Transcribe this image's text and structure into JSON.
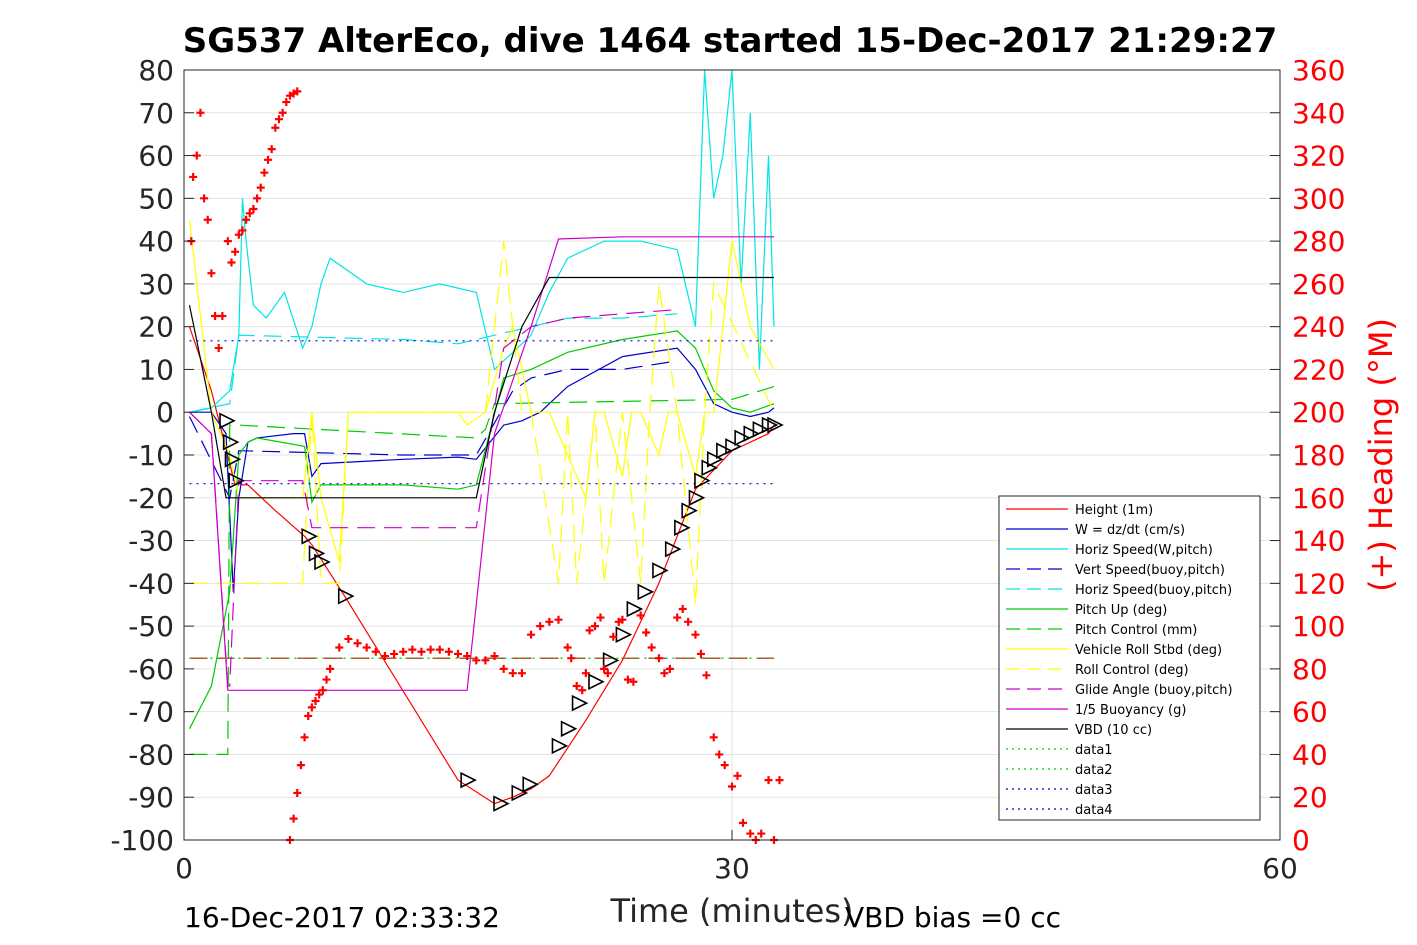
{
  "chart_data": {
    "type": "line",
    "title": "SG537 AlterEco, dive 1464 started 15-Dec-2017 21:29:27",
    "xlabel": "Time (minutes)",
    "ylabel_right": "(+) Heading (°M)",
    "xlim": [
      0,
      60
    ],
    "ylim": [
      -100,
      80
    ],
    "ylim_right": [
      0,
      360
    ],
    "x_ticks": [
      "0",
      "30",
      "60"
    ],
    "y_ticks": [
      "80",
      "70",
      "60",
      "50",
      "40",
      "30",
      "20",
      "10",
      "0",
      "-10",
      "-20",
      "-30",
      "-40",
      "-50",
      "-60",
      "-70",
      "-80",
      "-90",
      "-100"
    ],
    "y_ticks_right": [
      "360",
      "340",
      "320",
      "300",
      "280",
      "260",
      "240",
      "220",
      "200",
      "180",
      "160",
      "140",
      "120",
      "100",
      "80",
      "60",
      "40",
      "20",
      "0"
    ],
    "grid": true,
    "legend_position": "bottom-right",
    "footer_left": "16-Dec-2017 02:33:32",
    "footer_right": "VBD bias =0 cc",
    "series": [
      {
        "name": "Height (1m)",
        "color": "#ff0000",
        "style": "solid",
        "x": [
          0.3,
          1.5,
          2.5,
          2.8,
          3.0,
          3.2,
          3.5,
          5.0,
          6.6,
          7.0,
          8.8,
          15.0,
          17.0,
          18.0,
          19.0,
          20.0,
          22.0,
          24.0,
          26.0,
          28.0,
          30.0,
          32.0,
          32.3
        ],
        "y": [
          20,
          5,
          -12,
          -17,
          -16,
          -17,
          -17,
          -23,
          -29,
          -31,
          -43,
          -86,
          -91.5,
          -90,
          -88,
          -85,
          -72,
          -58,
          -40,
          -18,
          -9,
          -5,
          -3
        ]
      },
      {
        "name": "W = dz/dt (cm/s)",
        "color": "#0000cc",
        "style": "solid",
        "x": [
          0.3,
          1.5,
          2.3,
          2.7,
          3.0,
          3.5,
          4.0,
          6.0,
          6.6,
          7.0,
          7.5,
          12.0,
          15.0,
          16.0,
          17.5,
          18.5,
          19.5,
          21.0,
          24.0,
          27.0,
          28.0,
          29.0,
          30.0,
          31.0,
          32.0,
          32.3
        ],
        "y": [
          0,
          0,
          -5,
          -42,
          -20,
          -7,
          -6,
          -5,
          -5,
          -15,
          -12,
          -11,
          -10.5,
          -11,
          -3,
          -2,
          0,
          6,
          13,
          15,
          10,
          2,
          0,
          -1,
          0,
          1
        ]
      },
      {
        "name": "Horiz Speed(W,pitch)",
        "color": "#00e5e5",
        "style": "solid",
        "x": [
          0.3,
          1.5,
          2.5,
          3.0,
          3.2,
          3.4,
          3.8,
          4.5,
          5.5,
          6.5,
          7.0,
          7.5,
          8.0,
          10.0,
          12.0,
          14.0,
          16.0,
          17.0,
          18.0,
          19.0,
          20.0,
          21.0,
          23.0,
          25.0,
          27.0,
          28.0,
          28.5,
          29.0,
          29.5,
          30.0,
          30.5,
          31.0,
          31.5,
          32.0,
          32.3
        ],
        "y": [
          0,
          1,
          5,
          18,
          50,
          40,
          25,
          22,
          28,
          15,
          20,
          30,
          36,
          30,
          28,
          30,
          28,
          10,
          14,
          18,
          28,
          36,
          40,
          40,
          38,
          20,
          80,
          50,
          60,
          80,
          30,
          70,
          10,
          60,
          20
        ]
      },
      {
        "name": "Vert Speed(buoy,pitch)",
        "color": "#0000cc",
        "style": "dashed",
        "x": [
          0.3,
          2.5,
          3.0,
          12.0,
          15.0,
          16.0,
          18.0,
          19.0,
          21.0,
          24.0,
          27.0
        ],
        "y": [
          -1,
          -20,
          -9,
          -10,
          -10,
          -10,
          5,
          8,
          10,
          10,
          12
        ]
      },
      {
        "name": "Horiz Speed(buoy,pitch)",
        "color": "#00e5e5",
        "style": "dashed",
        "x": [
          0.3,
          2.5,
          3.0,
          12.0,
          15.0,
          16.0,
          18.0,
          19.0,
          21.0,
          24.0,
          27.0
        ],
        "y": [
          0,
          2,
          18,
          17,
          16,
          17,
          19,
          20,
          22,
          22,
          23
        ]
      },
      {
        "name": "Pitch Up (deg)",
        "color": "#00cc00",
        "style": "solid",
        "x": [
          0.3,
          1.5,
          2.5,
          3.0,
          3.5,
          4.0,
          6.6,
          7.0,
          7.5,
          12.0,
          15.0,
          16.0,
          17.5,
          19.0,
          21.0,
          24.0,
          27.0,
          28.0,
          29.0,
          30.0,
          31.0,
          32.3
        ],
        "y": [
          -74,
          -64,
          -42,
          -10,
          -7,
          -6,
          -8,
          -21,
          -17,
          -17,
          -18,
          -17,
          8,
          10,
          14,
          17,
          19,
          15,
          5,
          1,
          0,
          2
        ]
      },
      {
        "name": "Pitch Control (mm)",
        "color": "#00cc00",
        "style": "dashed",
        "x": [
          0.3,
          1.5,
          2.4,
          2.5,
          3.0,
          16.0,
          16.5,
          17.0,
          30.0,
          32.3
        ],
        "y": [
          -80,
          -80,
          -80,
          -3,
          -3,
          -6,
          -4,
          2,
          3,
          6
        ]
      },
      {
        "name": "Vehicle Roll Stbd (deg)",
        "color": "#ffff00",
        "style": "solid",
        "x": [
          0.3,
          1.5,
          2.5,
          3.0,
          6.5,
          7.0,
          7.5,
          8.5,
          9.0,
          15.0,
          15.5,
          16.5,
          17.5,
          18.0,
          19.0,
          20.0,
          21.0,
          22.0,
          22.5,
          23.0,
          24.0,
          24.5,
          25.0,
          26.0,
          26.5,
          27.0,
          28.0,
          28.5,
          29.0,
          30.0,
          31.0,
          32.3
        ],
        "y": [
          45,
          0,
          -10,
          -20,
          -20,
          0,
          -20,
          -35,
          0,
          0,
          -3,
          0,
          15,
          20,
          0,
          0,
          -10,
          -20,
          0,
          0,
          -15,
          0,
          0,
          -10,
          0,
          0,
          -15,
          0,
          0,
          40,
          20,
          10
        ]
      },
      {
        "name": "Roll Control (deg)",
        "color": "#ffff00",
        "style": "dashed",
        "x": [
          0.3,
          1.5,
          2.5,
          3.0,
          6.5,
          7.0,
          7.5,
          8.5,
          9.0,
          15.0,
          16.5,
          17.5,
          18.5,
          19.0,
          20.5,
          21.0,
          21.5,
          22.5,
          23.0,
          24.0,
          25.0,
          25.5,
          26.0,
          27.0,
          28.0,
          28.5,
          29.0,
          32.3
        ],
        "y": [
          -40,
          -40,
          -40,
          -40,
          -40,
          0,
          -40,
          -40,
          0,
          0,
          0,
          40,
          0,
          0,
          -40,
          0,
          -40,
          0,
          -40,
          0,
          -40,
          0,
          30,
          0,
          -45,
          0,
          30,
          0
        ]
      },
      {
        "name": "Glide Angle (buoy,pitch)",
        "color": "#cc00cc",
        "style": "dashed",
        "x": [
          0.3,
          1.5,
          2.4,
          2.5,
          3.0,
          6.5,
          7.0,
          12.0,
          16.0,
          17.5,
          19.0,
          21.0,
          24.0,
          27.0
        ],
        "y": [
          0,
          -5,
          -64,
          -64,
          -16,
          -16,
          -27,
          -27,
          -27,
          15,
          20,
          22,
          23,
          24
        ]
      },
      {
        "name": "1/5 Buoyancy (g)",
        "color": "#cc00cc",
        "style": "solid",
        "x": [
          0.3,
          1.5,
          2.4,
          2.5,
          15.5,
          17.0,
          19.0,
          20.5,
          24.0,
          32.3
        ],
        "y": [
          0,
          -5,
          -65,
          -65,
          -65,
          -5,
          20,
          40.5,
          41,
          41
        ]
      },
      {
        "name": "VBD (10 cc)",
        "color": "#000000",
        "style": "solid",
        "x": [
          0.3,
          1.5,
          2.3,
          2.5,
          3.0,
          15.5,
          16.0,
          17.0,
          18.5,
          20.0,
          32.3
        ],
        "y": [
          25,
          0,
          -20,
          -20,
          -20,
          -20,
          -20,
          0,
          20,
          31.5,
          31.5
        ]
      },
      {
        "name": "data1",
        "color": "#00cc00",
        "style": "dotted",
        "x": [
          0.3,
          32.3
        ],
        "y": [
          -57.5,
          -57.5
        ]
      },
      {
        "name": "data2",
        "color": "#00cc00",
        "style": "dotted",
        "x": [
          0.3,
          32.3
        ],
        "y": [
          -57.5,
          -57.5
        ]
      },
      {
        "name": "data3",
        "color": "#0000cc",
        "style": "dotted",
        "x": [
          0.3,
          32.3
        ],
        "y": [
          16.7,
          16.7
        ]
      },
      {
        "name": "data4",
        "color": "#0000cc",
        "style": "dotted",
        "x": [
          0.3,
          32.3
        ],
        "y": [
          -16.7,
          -16.7
        ]
      }
    ],
    "extra_lines": [
      {
        "color": "#cc0000",
        "style": "dashed",
        "x": [
          0.3,
          32.3
        ],
        "y": [
          -57.5,
          -57.5
        ]
      }
    ],
    "depth_markers": {
      "color": "#000000",
      "x": [
        2.3,
        2.5,
        2.6,
        2.8,
        6.8,
        7.2,
        7.5,
        8.8,
        15.5,
        17.3,
        18.3,
        18.9,
        20.5,
        21.0,
        21.6,
        22.5,
        23.3,
        24.0,
        24.6,
        25.2,
        26.0,
        26.7,
        27.2,
        27.6,
        28.0,
        28.3,
        28.7,
        29.0,
        29.5,
        30.0,
        30.5,
        31.0,
        31.5,
        32.0,
        32.3
      ],
      "y": [
        -2,
        -7,
        -11,
        -16,
        -29,
        -33,
        -35,
        -43,
        -86,
        -91.5,
        -89,
        -87,
        -78,
        -74,
        -68,
        -63,
        -58,
        -52,
        -46,
        -42,
        -37,
        -32,
        -27,
        -23,
        -20,
        -16,
        -13,
        -11,
        -9,
        -8,
        -6,
        -5,
        -4,
        -3,
        -3
      ]
    },
    "heading_points": {
      "name": "(+) Heading (°M)",
      "color": "#ff0000",
      "x": [
        0.4,
        0.5,
        0.7,
        0.9,
        1.1,
        1.3,
        1.5,
        1.7,
        1.9,
        2.1,
        2.4,
        2.6,
        2.8,
        3.0,
        3.2,
        3.4,
        3.6,
        3.8,
        4.0,
        4.2,
        4.4,
        4.6,
        4.8,
        5.0,
        5.2,
        5.4,
        5.6,
        5.8,
        6.0,
        6.2,
        5.8,
        6.0,
        6.2,
        6.4,
        6.6,
        6.8,
        7.0,
        7.2,
        7.4,
        7.6,
        7.8,
        8.0,
        8.5,
        9.0,
        9.5,
        10.0,
        10.5,
        11.0,
        11.5,
        12.0,
        12.5,
        13.0,
        13.5,
        14.0,
        14.5,
        15.0,
        15.5,
        16.0,
        16.5,
        17.0,
        17.5,
        18.0,
        18.5,
        19.0,
        19.5,
        20.0,
        20.5,
        21.0,
        21.2,
        21.5,
        21.8,
        22.0,
        22.2,
        22.5,
        22.8,
        23.0,
        23.2,
        23.5,
        23.8,
        24.0,
        24.3,
        24.6,
        25.0,
        25.3,
        25.6,
        26.0,
        26.3,
        26.6,
        27.0,
        27.3,
        27.6,
        28.0,
        28.3,
        28.6,
        29.0,
        29.3,
        29.6,
        30.0,
        30.3,
        30.6,
        31.0,
        31.3,
        31.6,
        32.0,
        32.3,
        32.6
      ],
      "y": [
        280,
        310,
        320,
        340,
        300,
        290,
        265,
        245,
        230,
        245,
        280,
        270,
        275,
        283,
        285,
        290,
        293,
        295,
        300,
        305,
        312,
        318,
        323,
        333,
        337,
        340,
        345,
        348,
        349,
        350,
        0,
        10,
        22,
        35,
        48,
        58,
        62,
        65,
        68,
        70,
        75,
        80,
        90,
        94,
        92,
        90,
        88,
        86,
        87,
        88,
        89,
        88,
        89,
        89,
        88,
        87,
        86,
        84,
        84,
        86,
        80,
        78,
        78,
        96,
        100,
        102,
        103,
        90,
        85,
        72,
        70,
        78,
        98,
        100,
        104,
        80,
        78,
        95,
        102,
        103,
        75,
        74,
        105,
        97,
        90,
        85,
        78,
        80,
        104,
        108,
        102,
        96,
        87,
        77,
        48,
        40,
        35,
        25,
        30,
        8,
        3,
        0,
        3,
        28,
        0,
        28
      ]
    }
  }
}
